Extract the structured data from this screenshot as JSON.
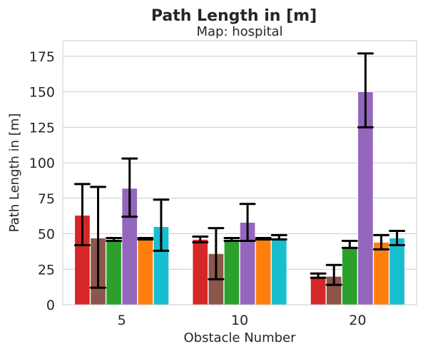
{
  "chart_data": {
    "type": "bar",
    "title": "Path Length in [m]",
    "subtitle": "Map: hospital",
    "xlabel": "Obstacle Number",
    "ylabel": "Path Length in [m]",
    "categories": [
      "5",
      "10",
      "20"
    ],
    "ylim": [
      0,
      186
    ],
    "yticks": [
      0,
      25,
      50,
      75,
      100,
      125,
      150,
      175
    ],
    "grid": true,
    "legend": "none",
    "series": [
      {
        "color": "#d62728",
        "values": [
          63,
          46,
          20
        ],
        "err_low": [
          42,
          44,
          19
        ],
        "err_high": [
          85,
          48,
          22
        ]
      },
      {
        "color": "#8c564b",
        "values": [
          47,
          36,
          20
        ],
        "err_low": [
          12,
          18,
          14
        ],
        "err_high": [
          83,
          54,
          28
        ]
      },
      {
        "color": "#2ca02c",
        "values": [
          46,
          46,
          41
        ],
        "err_low": [
          45,
          45,
          40
        ],
        "err_high": [
          47,
          47,
          45
        ]
      },
      {
        "color": "#9467bd",
        "values": [
          82,
          58,
          150
        ],
        "err_low": [
          62,
          45,
          125
        ],
        "err_high": [
          103,
          71,
          177
        ]
      },
      {
        "color": "#ff7f0e",
        "values": [
          46,
          46,
          44
        ],
        "err_low": [
          46,
          46,
          39
        ],
        "err_high": [
          47,
          47,
          49
        ]
      },
      {
        "color": "#17becf",
        "values": [
          55,
          47,
          47
        ],
        "err_low": [
          38,
          46,
          42
        ],
        "err_high": [
          74,
          49,
          52
        ]
      }
    ]
  }
}
